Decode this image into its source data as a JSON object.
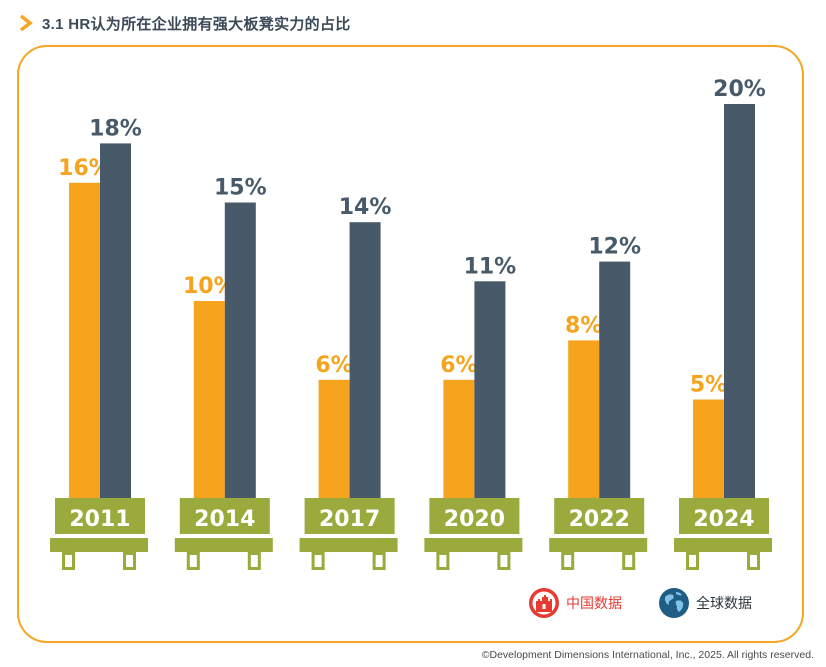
{
  "header": {
    "title": "3.1 HR认为所在企业拥有强大板凳实力的占比"
  },
  "colors": {
    "china": "#f6a31d",
    "global": "#48596a",
    "bench": "#9aaa3c",
    "frame": "#f6a623",
    "year_text": "#ffffff"
  },
  "legend": {
    "china_label": "中国数据",
    "china_icon": "china-wall-icon",
    "global_label": "全球数据",
    "global_icon": "globe-icon"
  },
  "chart_data": {
    "type": "bar",
    "categories": [
      "2011",
      "2014",
      "2017",
      "2020",
      "2022",
      "2024"
    ],
    "series": [
      {
        "name": "中国数据",
        "values": [
          16,
          10,
          6,
          6,
          8,
          5
        ],
        "labels": [
          "16%",
          "10%",
          "6%",
          "6%",
          "8%",
          "5%"
        ]
      },
      {
        "name": "全球数据",
        "values": [
          18,
          15,
          14,
          11,
          12,
          20
        ],
        "labels": [
          "18%",
          "15%",
          "14%",
          "11%",
          "12%",
          "20%"
        ]
      }
    ],
    "unit": "%",
    "ylim": [
      0,
      20
    ],
    "grid": false,
    "legend_position": "bottom-right"
  },
  "footer": {
    "copyright": "©Development Dimensions International, Inc., 2025. All rights reserved."
  }
}
